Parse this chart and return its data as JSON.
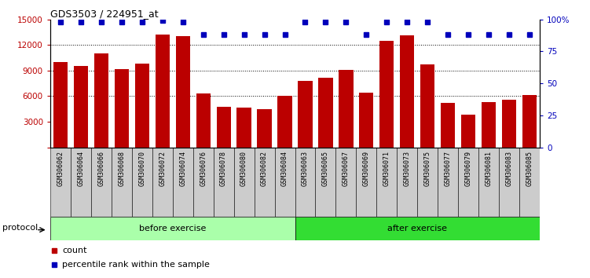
{
  "title": "GDS3503 / 224951_at",
  "samples": [
    "GSM306062",
    "GSM306064",
    "GSM306066",
    "GSM306068",
    "GSM306070",
    "GSM306072",
    "GSM306074",
    "GSM306076",
    "GSM306078",
    "GSM306080",
    "GSM306082",
    "GSM306084",
    "GSM306063",
    "GSM306065",
    "GSM306067",
    "GSM306069",
    "GSM306071",
    "GSM306073",
    "GSM306075",
    "GSM306077",
    "GSM306079",
    "GSM306081",
    "GSM306083",
    "GSM306085"
  ],
  "counts": [
    10000,
    9500,
    11000,
    9200,
    9800,
    13200,
    13000,
    6300,
    4800,
    4700,
    4500,
    6000,
    7800,
    8200,
    9100,
    6400,
    12500,
    13100,
    9700,
    5200,
    3800,
    5300,
    5600,
    6100
  ],
  "percentile_ranks": [
    98,
    98,
    98,
    98,
    98,
    99,
    98,
    88,
    88,
    88,
    88,
    88,
    98,
    98,
    98,
    88,
    98,
    98,
    98,
    88,
    88,
    88,
    88,
    88
  ],
  "group_labels": [
    "before exercise",
    "after exercise"
  ],
  "group_sizes": [
    12,
    12
  ],
  "group_colors": [
    "#AAFFAA",
    "#33DD33"
  ],
  "bar_color": "#BB0000",
  "dot_color": "#0000BB",
  "ylim_left": [
    0,
    15000
  ],
  "ylim_right": [
    0,
    100
  ],
  "yticks_left": [
    0,
    3000,
    6000,
    9000,
    12000,
    15000
  ],
  "yticks_right": [
    0,
    25,
    50,
    75,
    100
  ],
  "ytick_labels_right": [
    "0",
    "25",
    "50",
    "75",
    "100%"
  ],
  "grid_values": [
    6000,
    9000,
    12000
  ],
  "protocol_label": "protocol",
  "legend_count_label": "count",
  "legend_percentile_label": "percentile rank within the sample",
  "bg_color": "#ffffff",
  "axes_bg": "#ffffff",
  "tick_bg_color": "#CCCCCC",
  "bar_width": 0.7
}
